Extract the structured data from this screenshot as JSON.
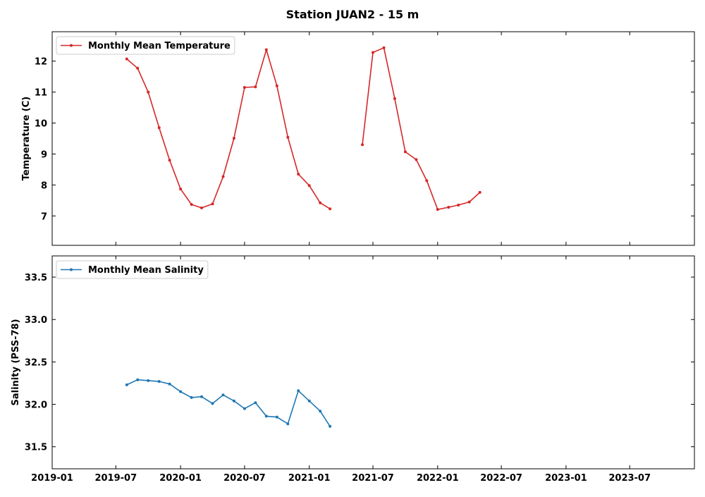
{
  "title": "Station JUAN2 - 15 m",
  "x_ticks": [
    "2019-01",
    "2019-07",
    "2020-01",
    "2020-07",
    "2021-01",
    "2021-07",
    "2022-01",
    "2022-07",
    "2023-01",
    "2023-07"
  ],
  "chart_data": [
    {
      "type": "line",
      "ylabel": "Temperature (C)",
      "legend": "Monthly Mean Temperature",
      "legend_position": "upper-left",
      "color": "#d62728",
      "ylim": [
        6.05,
        12.95
      ],
      "xlim": [
        "2019-01-01",
        "2024-01-01"
      ],
      "y_ticks": [
        7,
        8,
        9,
        10,
        11,
        12
      ],
      "segments": [
        {
          "x": [
            "2019-08-01",
            "2019-09-01",
            "2019-10-01",
            "2019-11-01",
            "2019-12-01",
            "2020-01-01",
            "2020-02-01",
            "2020-03-01",
            "2020-04-01",
            "2020-05-01",
            "2020-06-01",
            "2020-07-01",
            "2020-08-01",
            "2020-09-01",
            "2020-10-01",
            "2020-11-01",
            "2020-12-01",
            "2021-01-01",
            "2021-02-01",
            "2021-03-01"
          ],
          "y": [
            12.07,
            11.77,
            11.0,
            9.85,
            8.8,
            7.87,
            7.37,
            7.26,
            7.39,
            8.27,
            9.51,
            11.15,
            11.17,
            12.37,
            11.2,
            9.54,
            8.35,
            7.98,
            7.42,
            7.23
          ]
        },
        {
          "x": [
            "2021-06-01",
            "2021-07-01",
            "2021-08-01",
            "2021-09-01",
            "2021-10-01",
            "2021-11-01",
            "2021-12-01",
            "2022-01-01",
            "2022-02-01",
            "2022-03-01",
            "2022-04-01",
            "2022-05-01"
          ],
          "y": [
            9.3,
            12.28,
            12.43,
            10.79,
            9.07,
            8.82,
            8.14,
            7.21,
            7.28,
            7.35,
            7.45,
            7.76
          ]
        }
      ]
    },
    {
      "type": "line",
      "ylabel": "Salinity (PSS-78)",
      "legend": "Monthly Mean Salinity",
      "legend_position": "upper-left",
      "color": "#1f77b4",
      "ylim": [
        31.24,
        33.75
      ],
      "xlim": [
        "2019-01-01",
        "2024-01-01"
      ],
      "y_ticks": [
        31.5,
        32.0,
        32.5,
        33.0,
        33.5
      ],
      "y_tick_labels": [
        "31.5",
        "32.0",
        "32.5",
        "33.0",
        "33.5"
      ],
      "segments": [
        {
          "x": [
            "2019-08-01",
            "2019-09-01",
            "2019-10-01",
            "2019-11-01",
            "2019-12-01",
            "2020-01-01",
            "2020-02-01",
            "2020-03-01",
            "2020-04-01",
            "2020-05-01",
            "2020-06-01",
            "2020-07-01",
            "2020-08-01",
            "2020-09-01",
            "2020-10-01",
            "2020-11-01",
            "2020-12-01",
            "2021-01-01",
            "2021-02-01",
            "2021-03-01"
          ],
          "y": [
            32.23,
            32.29,
            32.28,
            32.27,
            32.24,
            32.15,
            32.08,
            32.09,
            32.01,
            32.11,
            32.04,
            31.95,
            32.02,
            31.86,
            31.85,
            31.77,
            32.16,
            32.04,
            31.92,
            31.74
          ]
        }
      ]
    }
  ]
}
